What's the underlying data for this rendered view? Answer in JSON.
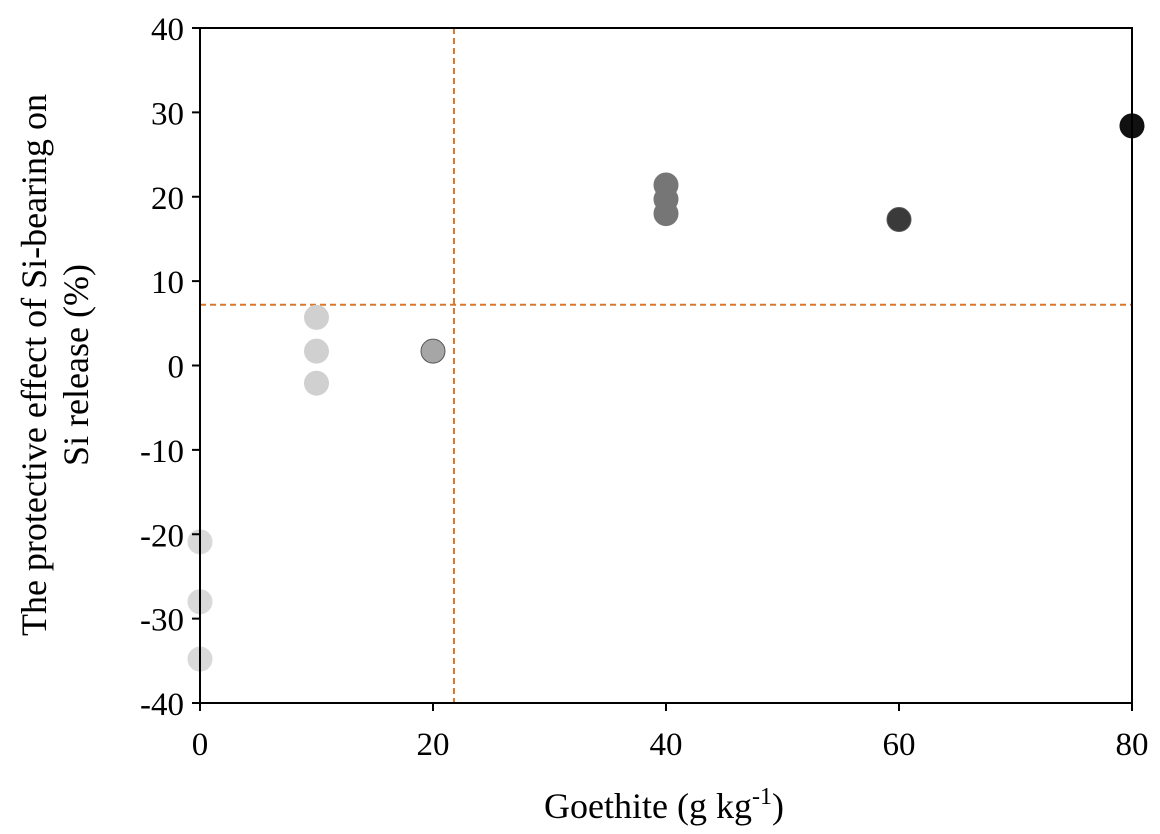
{
  "chart_data": {
    "type": "scatter",
    "title": "",
    "xlabel": "Goethite (g kg",
    "xlabel_sup": "-1",
    "xlabel_suffix": ")",
    "ylabel_line1": "The protective effect of Si-bearing on",
    "ylabel_line2": "Si release (%)",
    "xlim": [
      0,
      80
    ],
    "ylim": [
      -40,
      40
    ],
    "xticks": [
      0,
      20,
      40,
      60,
      80
    ],
    "yticks": [
      -40,
      -30,
      -20,
      -10,
      0,
      10,
      20,
      30,
      40
    ],
    "grid": false,
    "legend": "none",
    "reference_lines": {
      "vertical_x": 21.8,
      "horizontal_y": 7.2,
      "color": "#d9782d"
    },
    "series": [
      {
        "color": "#d9d9d9",
        "points": [
          [
            0,
            -20.9
          ],
          [
            0,
            -28.0
          ],
          [
            0,
            -34.8
          ]
        ]
      },
      {
        "color": "#d0d0d0",
        "points": [
          [
            10,
            5.7
          ],
          [
            10,
            1.7
          ],
          [
            10,
            -2.1
          ]
        ]
      },
      {
        "color": "#a6a6a6",
        "points": [
          [
            20,
            1.7
          ]
        ]
      },
      {
        "color": "#767676",
        "points": [
          [
            40,
            21.4
          ],
          [
            40,
            19.7
          ],
          [
            40,
            18.0
          ]
        ]
      },
      {
        "color": "#3a3a3a",
        "points": [
          [
            60,
            17.3
          ]
        ]
      },
      {
        "color": "#111111",
        "points": [
          [
            80,
            28.4
          ]
        ]
      }
    ]
  }
}
